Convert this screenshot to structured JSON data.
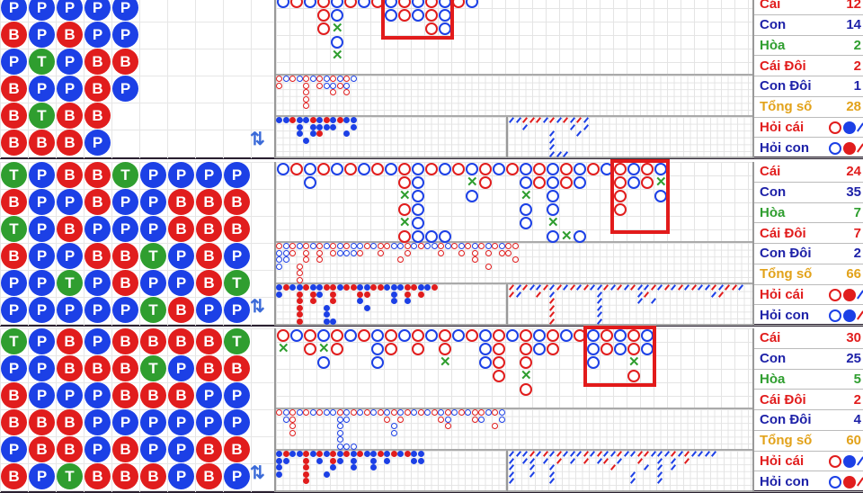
{
  "colors": {
    "banker": "#e11d1d",
    "player": "#1c40e6",
    "tie": "#2f9e2f",
    "con_label": "#1e22a8",
    "total": "#e2a21a"
  },
  "panels": [
    {
      "bead_plate": [
        "PPPPP",
        "BPBPP",
        "PTPBB",
        "BPPBP",
        "BTBB",
        "BBBP"
      ],
      "big_road": [
        "BRBRBRBRBRBRBRB",
        "...RB...BRBRB",
        "...RX......RB",
        "....B",
        "....X",
        ""
      ],
      "highlight": {
        "col_from": 8,
        "col_to": 12,
        "row_from": 0,
        "row_to": 2
      },
      "big_eye_road": [
        "rbrbrbrbrbrb",
        "r...r.rbbrb",
        "....r...r.r",
        "....r",
        "....r",
        ""
      ],
      "small_road": [
        "bbrbbrbrbrbb",
        "...b.bbbb..b",
        "...b.br...b",
        "....b"
      ],
      "cockroach_road": [
        "bbrrrbrbrbrb",
        "..b......b.b",
        "......b...b.",
        "......b",
        "......b",
        "......bbb"
      ],
      "stats": [
        {
          "label": "Cái",
          "value": "12"
        },
        {
          "label": "Con",
          "value": "14"
        },
        {
          "label": "Hòa",
          "value": "2"
        },
        {
          "label": "Cái Đôi",
          "value": "2"
        },
        {
          "label": "Con Đôi",
          "value": "1"
        },
        {
          "label": "Tổng số",
          "value": "28"
        }
      ],
      "ask": [
        {
          "label": "Hỏi cái",
          "icons": [
            "red-ring",
            "blue-dot",
            "blue-slash"
          ]
        },
        {
          "label": "Hỏi con",
          "icons": [
            "blue-ring",
            "red-dot",
            "red-slash"
          ]
        }
      ]
    },
    {
      "bead_plate": [
        "TPBBTPPPP",
        "BPPBPPBBB",
        "TPBPPPBBB",
        "BPPBBTPBP",
        "PPTPBPPBT",
        "PPPPPTBPP"
      ],
      "big_road": [
        "BRBRBRBRBRBRBRBRBRBRBRBRBRBRB",
        "..B......RB...XR..BRBRB..RBRX",
        ".........XB...B...X.B....R..B",
        ".........RB.......B.B....R",
        ".........XB.......B.X",
        ".........RBBB.......BXB"
      ],
      "highlight": {
        "col_from": 25,
        "col_to": 28,
        "row_from": 0,
        "row_to": 4
      },
      "big_eye_road": [
        "rbrbrbrbrbrbbrbrrbbrbrbbrbrbrbrbrbrr",
        "bbr.r.r.rbbbr..r...r....r..r.r.r.rr.",
        "bb..r.r...........r..........r.....r",
        "b..r...........................r....",
        "...r",
        "...r"
      ],
      "small_road": [
        "brbbrbbrrbrrbbrrbbbrrbbr",
        "b..r.rb.r...rr...b.r.r..",
        "...r.r..r...b....b.b....",
        "...r...b.....b",
        "...r...b",
        "...r...bb"
      ],
      "cockroach_road": [
        "rbrbbrbrbrbrbbrbrbrbbrbrbrbrbbrbrrb",
        "rb..r.b......b.....br.........br..",
        "......r......b.....b.b......",
        "......r......b",
        "......r......b",
        "......r......b"
      ],
      "stats": [
        {
          "label": "Cái",
          "value": "24"
        },
        {
          "label": "Con",
          "value": "35"
        },
        {
          "label": "Hòa",
          "value": "7"
        },
        {
          "label": "Cái Đôi",
          "value": "7"
        },
        {
          "label": "Con Đôi",
          "value": "2"
        },
        {
          "label": "Tổng số",
          "value": "66"
        }
      ],
      "ask": [
        {
          "label": "Hỏi cái",
          "icons": [
            "red-ring",
            "red-dot",
            "blue-slash"
          ]
        },
        {
          "label": "Hỏi con",
          "icons": [
            "blue-ring",
            "blue-dot",
            "red-slash"
          ]
        }
      ]
    },
    {
      "bead_plate": [
        "TPBPBBBBT",
        "PPBBBTPBB",
        "BPPPBBBPP",
        "BBBPPPPPP",
        "PBBPBPPBB",
        "BPTBBBPBP"
      ],
      "big_road": [
        "RBRBRBRBRBRBRBRBRBRBRBRBRBRB",
        "X.RXR..BR.R.R..BR.RBR..BRBRB",
        "...B...B....X..BR.R....B..X",
        "................R.X.......R",
        "..................R",
        ""
      ],
      "highlight": {
        "col_from": 23,
        "col_to": 27,
        "row_from": 0,
        "row_to": 3
      },
      "big_eye_road": [
        "rbrbrbrbbrbrbrbrbrbrbrbrbrbrbrrbrb",
        ".br......bb.....r.r.....rb...rb..b",
        "..r......b.......b.......r......r.",
        "..r......b.......b",
        ".........b",
        ".........bbb"
      ],
      "small_road": [
        "brbbrbrbrbrbrbbrbrbrbb",
        "bb..r.b.rb.b..b.b...bb",
        "b...r...b..b..b",
        "b...r..b",
        "....r"
      ],
      "cockroach_road": [
        "bbbrbrbrbbbrbrbbrbbrrbbbrbrbbbb",
        "b.bb.b.r.b.r.br.b..r..b.b.r",
        "b..b..b........r....b.b.b",
        "b..b..b...........b...b",
        "b.....b...........b...b"
      ],
      "stats": [
        {
          "label": "Cái",
          "value": "30"
        },
        {
          "label": "Con",
          "value": "25"
        },
        {
          "label": "Hòa",
          "value": "5"
        },
        {
          "label": "Cái Đôi",
          "value": "2"
        },
        {
          "label": "Con Đôi",
          "value": "4"
        },
        {
          "label": "Tổng số",
          "value": "60"
        }
      ],
      "ask": [
        {
          "label": "Hỏi cái",
          "icons": [
            "red-ring",
            "blue-dot",
            "blue-slash"
          ]
        },
        {
          "label": "Hỏi con",
          "icons": [
            "blue-ring",
            "red-dot",
            "red-slash"
          ]
        }
      ]
    }
  ]
}
